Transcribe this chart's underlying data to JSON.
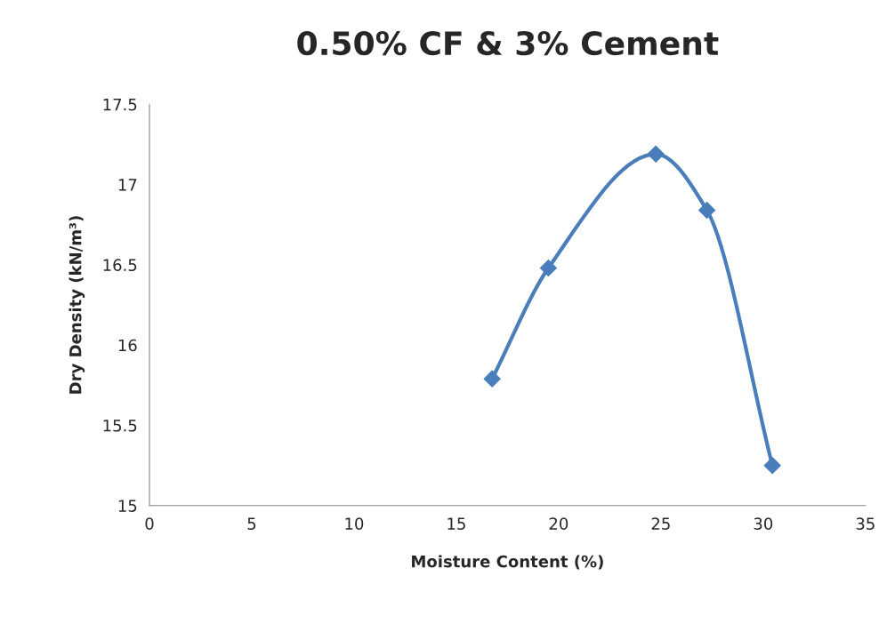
{
  "chart_data": {
    "type": "line",
    "title": "0.50% CF & 3% Cement",
    "xlabel": "Moisture Content (%)",
    "ylabel": "Dry Density (kN/m³)",
    "x": [
      16.75,
      19.5,
      24.75,
      27.25,
      30.45
    ],
    "series": [
      {
        "color": "#4a7ebb",
        "values": [
          15.79,
          16.48,
          17.19,
          16.84,
          15.25
        ]
      }
    ],
    "xlim": [
      0,
      35
    ],
    "xticks": [
      0,
      5,
      10,
      15,
      20,
      25,
      30,
      35
    ],
    "ylim": [
      15,
      17.5
    ],
    "yticks": [
      15,
      15.5,
      16,
      16.5,
      17,
      17.5
    ],
    "grid": false,
    "legend": false,
    "marker": "diamond",
    "line_style": "solid"
  }
}
